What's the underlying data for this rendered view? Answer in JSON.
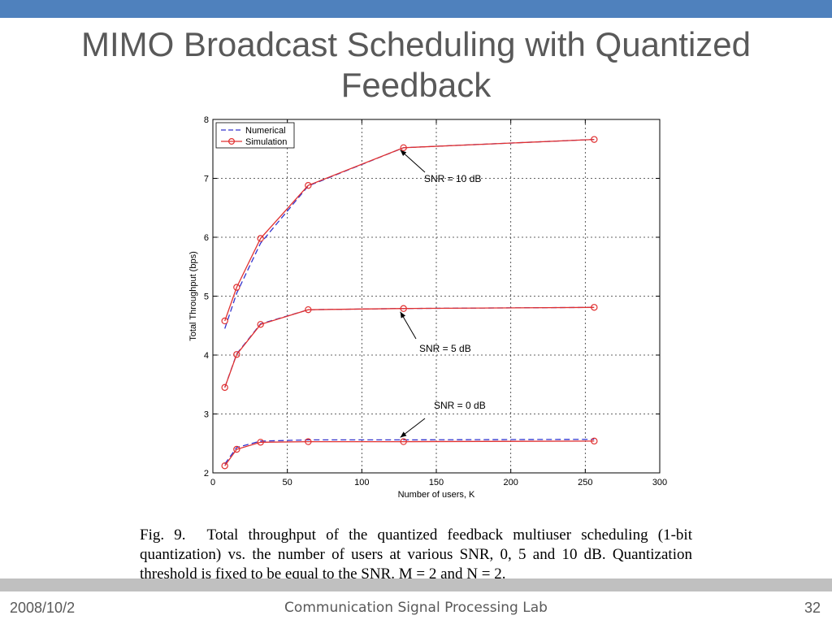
{
  "slide": {
    "title": "MIMO Broadcast Scheduling with Quantized Feedback",
    "caption": {
      "label": "Fig. 9.",
      "text": "Total throughput of the quantized feedback multiuser scheduling (1-bit quantization) vs. the number of users at various SNR, 0, 5 and 10 dB. Quantization threshold is fixed to be equal to the SNR. M = 2 and N = 2."
    },
    "footer": {
      "date": "2008/10/2",
      "lab": "Communication Signal Processing Lab",
      "page": "32"
    }
  },
  "colors": {
    "top_bar": "#4f81bd",
    "footer_bar": "#c0c0c0",
    "numerical": "#3333cc",
    "simulation": "#e03030"
  },
  "chart_data": {
    "type": "line",
    "title": "",
    "xlabel": "Number of users, K",
    "ylabel": "Total Throughput (bps)",
    "xlim": [
      0,
      300
    ],
    "ylim": [
      2,
      8
    ],
    "xticks": [
      0,
      50,
      100,
      150,
      200,
      250,
      300
    ],
    "yticks": [
      2,
      3,
      4,
      5,
      6,
      7,
      8
    ],
    "grid": true,
    "legend_position": "top-left",
    "series": [
      {
        "name": "Numerical",
        "style": "dashed",
        "group": "SNR = 10 dB",
        "points": [
          [
            8,
            4.45
          ],
          [
            16,
            5.05
          ],
          [
            32,
            5.9
          ],
          [
            64,
            6.87
          ],
          [
            128,
            7.52
          ],
          [
            256,
            7.66
          ]
        ]
      },
      {
        "name": "Simulation",
        "style": "solid-circle",
        "group": "SNR = 10 dB",
        "points": [
          [
            8,
            4.58
          ],
          [
            16,
            5.15
          ],
          [
            32,
            5.98
          ],
          [
            64,
            6.88
          ],
          [
            128,
            7.52
          ],
          [
            256,
            7.66
          ]
        ]
      },
      {
        "name": "Numerical",
        "style": "dashed",
        "group": "SNR = 5 dB",
        "points": [
          [
            8,
            3.45
          ],
          [
            16,
            4.02
          ],
          [
            32,
            4.53
          ],
          [
            64,
            4.77
          ],
          [
            128,
            4.79
          ],
          [
            256,
            4.81
          ]
        ]
      },
      {
        "name": "Simulation",
        "style": "solid-circle",
        "group": "SNR = 5 dB",
        "points": [
          [
            8,
            3.45
          ],
          [
            16,
            4.01
          ],
          [
            32,
            4.52
          ],
          [
            64,
            4.77
          ],
          [
            128,
            4.79
          ],
          [
            256,
            4.81
          ]
        ]
      },
      {
        "name": "Numerical",
        "style": "dashed",
        "group": "SNR = 0 dB",
        "points": [
          [
            8,
            2.15
          ],
          [
            16,
            2.43
          ],
          [
            32,
            2.54
          ],
          [
            64,
            2.56
          ],
          [
            128,
            2.56
          ],
          [
            256,
            2.57
          ]
        ]
      },
      {
        "name": "Simulation",
        "style": "solid-circle",
        "group": "SNR = 0 dB",
        "points": [
          [
            8,
            2.12
          ],
          [
            16,
            2.4
          ],
          [
            32,
            2.52
          ],
          [
            64,
            2.53
          ],
          [
            128,
            2.53
          ],
          [
            256,
            2.54
          ]
        ]
      }
    ],
    "annotations": [
      {
        "text": "SNR = 10 dB",
        "arrow_to": [
          128,
          7.52
        ]
      },
      {
        "text": "SNR = 5 dB",
        "arrow_to": [
          128,
          4.79
        ]
      },
      {
        "text": "SNR = 0 dB",
        "arrow_to": [
          128,
          2.56
        ]
      }
    ],
    "legend": [
      "Numerical",
      "Simulation"
    ]
  }
}
